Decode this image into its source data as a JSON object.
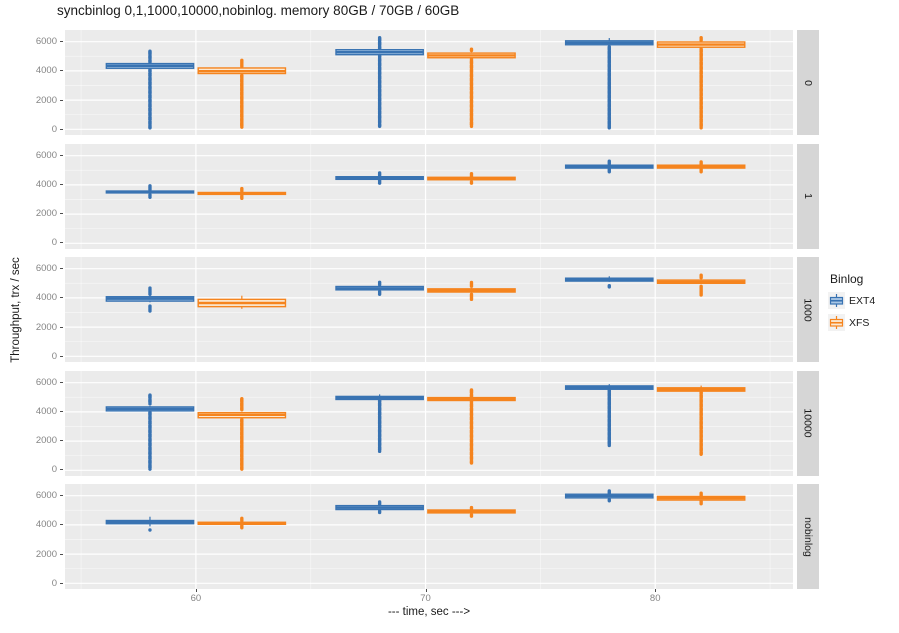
{
  "chart_data": {
    "type": "boxplot",
    "title": "syncbinlog 0,1,1000,10000,nobinlog. memory 80GB / 70GB / 60GB",
    "xlabel": "--- time, sec --->",
    "ylabel": "Throughput, trx / sec",
    "x_ticks": [
      60,
      70,
      80
    ],
    "x_domain": [
      54.3,
      86
    ],
    "y_ticks": [
      0,
      2000,
      4000,
      6000
    ],
    "y_minor_ticks": [
      1000,
      3000,
      5000
    ],
    "y_domain": [
      -390,
      6800
    ],
    "grid": "on",
    "legend": {
      "title": "Binlog",
      "position": "right",
      "entries": [
        {
          "label": "EXT4",
          "color": "#3973b2"
        },
        {
          "label": "XFS",
          "color": "#f5841e"
        }
      ]
    },
    "style": {
      "panel_bg": "#ebebeb",
      "grid_major": "#ffffff",
      "strip_bg": "#d6d6d6",
      "ext4_stroke": "#3973b2",
      "ext4_fill": "#a9c7e5",
      "xfs_stroke": "#f5841e",
      "xfs_fill": "#fbe9d3"
    },
    "facet_variable": "syncbinlog",
    "facets": [
      {
        "label": "0",
        "boxes": [
          {
            "x": 60,
            "series": "EXT4",
            "w": [
              4120,
              4550
            ],
            "box": [
              4180,
              4350,
              4500
            ],
            "below": [
              100,
              4100,
              "dense"
            ],
            "above": [
              4600,
              5400,
              "dense"
            ]
          },
          {
            "x": 60,
            "series": "XFS",
            "w": [
              3760,
              4250
            ],
            "box": [
              3820,
              3980,
              4200
            ],
            "below": [
              150,
              3720,
              "dense"
            ],
            "above": [
              4300,
              4800,
              "sparse"
            ]
          },
          {
            "x": 70,
            "series": "EXT4",
            "w": [
              5060,
              5500
            ],
            "box": [
              5110,
              5280,
              5450
            ],
            "below": [
              200,
              5050,
              "dense"
            ],
            "above": [
              5520,
              6350,
              "dense"
            ]
          },
          {
            "x": 70,
            "series": "XFS",
            "w": [
              4850,
              5280
            ],
            "box": [
              4900,
              5060,
              5220
            ],
            "below": [
              200,
              4840,
              "dense"
            ],
            "above": [
              5400,
              5550,
              "sparse"
            ]
          },
          {
            "x": 80,
            "series": "EXT4",
            "w": [
              5740,
              6250
            ],
            "box": [
              5790,
              5920,
              6060
            ],
            "below": [
              100,
              5740,
              "dense"
            ],
            "above": null
          },
          {
            "x": 80,
            "series": "XFS",
            "w": [
              5570,
              6030
            ],
            "box": [
              5620,
              5800,
              5980
            ],
            "below": [
              100,
              5570,
              "dense"
            ],
            "above": [
              6100,
              6350,
              "sparse"
            ]
          }
        ]
      },
      {
        "label": "1",
        "boxes": [
          {
            "x": 60,
            "series": "EXT4",
            "w": [
              3420,
              3610
            ],
            "box": [
              3450,
              3520,
              3580
            ],
            "below": [
              3150,
              3380,
              "sparse"
            ],
            "above": [
              3680,
              3950,
              "sparse"
            ]
          },
          {
            "x": 60,
            "series": "XFS",
            "w": [
              3320,
              3510
            ],
            "box": [
              3350,
              3420,
              3480
            ],
            "below": [
              3080,
              3280,
              "sparse"
            ],
            "above": [
              3580,
              3820,
              "sparse"
            ]
          },
          {
            "x": 70,
            "series": "EXT4",
            "w": [
              4350,
              4590
            ],
            "box": [
              4380,
              4470,
              4560
            ],
            "below": [
              4120,
              4300,
              "sparse"
            ],
            "above": [
              4650,
              4880,
              "sparse"
            ]
          },
          {
            "x": 70,
            "series": "XFS",
            "w": [
              4320,
              4550
            ],
            "box": [
              4350,
              4440,
              4520
            ],
            "below": [
              4120,
              4280,
              "sparse"
            ],
            "above": [
              4600,
              4800,
              "sparse"
            ]
          },
          {
            "x": 80,
            "series": "EXT4",
            "w": [
              5120,
              5380
            ],
            "box": [
              5150,
              5250,
              5350
            ],
            "below": [
              4900,
              5080,
              "sparse"
            ],
            "above": [
              5450,
              5650,
              "sparse"
            ]
          },
          {
            "x": 80,
            "series": "XFS",
            "w": [
              5120,
              5380
            ],
            "box": [
              5150,
              5250,
              5350
            ],
            "below": [
              4900,
              5080,
              "sparse"
            ],
            "above": [
              5400,
              5620,
              "sparse"
            ]
          }
        ]
      },
      {
        "label": "1000",
        "boxes": [
          {
            "x": 60,
            "series": "EXT4",
            "w": [
              3700,
              4150
            ],
            "box": [
              3780,
              3950,
              4080
            ],
            "below": [
              3100,
              3500,
              "sparse"
            ],
            "above": [
              4250,
              4700,
              "sparse"
            ]
          },
          {
            "x": 60,
            "series": "XFS",
            "w": [
              3250,
              4150
            ],
            "box": [
              3400,
              3650,
              3900
            ],
            "below": null,
            "above": null
          },
          {
            "x": 70,
            "series": "EXT4",
            "w": [
              4500,
              4830
            ],
            "box": [
              4550,
              4650,
              4780
            ],
            "below": [
              4250,
              4480,
              "sparse"
            ],
            "above": [
              4900,
              5100,
              "sparse"
            ]
          },
          {
            "x": 70,
            "series": "XFS",
            "w": [
              4350,
              4680
            ],
            "box": [
              4400,
              4500,
              4620
            ],
            "below": [
              3900,
              4300,
              "sparse"
            ],
            "above": [
              4800,
              5100,
              "sparse"
            ]
          },
          {
            "x": 80,
            "series": "EXT4",
            "w": [
              5100,
              5480
            ],
            "box": [
              5150,
              5250,
              5350
            ],
            "below": [
              4750,
              4900,
              "sparse"
            ],
            "above": null
          },
          {
            "x": 80,
            "series": "XFS",
            "w": [
              4950,
              5270
            ],
            "box": [
              5000,
              5100,
              5220
            ],
            "below": [
              4200,
              4800,
              "sparse"
            ],
            "above": [
              5380,
              5580,
              "sparse"
            ]
          }
        ]
      },
      {
        "label": "10000",
        "boxes": [
          {
            "x": 60,
            "series": "EXT4",
            "w": [
              4020,
              4400
            ],
            "box": [
              4070,
              4200,
              4340
            ],
            "below": [
              80,
              4000,
              "dense"
            ],
            "above": [
              4550,
              5230,
              "dense"
            ]
          },
          {
            "x": 60,
            "series": "XFS",
            "w": [
              3550,
              4000
            ],
            "box": [
              3600,
              3800,
              3950
            ],
            "below": [
              80,
              3520,
              "dense"
            ],
            "above": [
              4150,
              4900,
              "dense"
            ]
          },
          {
            "x": 70,
            "series": "EXT4",
            "w": [
              4800,
              5200
            ],
            "box": [
              4850,
              4950,
              5060
            ],
            "below": [
              1300,
              4800,
              "dense"
            ],
            "above": null
          },
          {
            "x": 70,
            "series": "XFS",
            "w": [
              4720,
              5030
            ],
            "box": [
              4780,
              4880,
              4980
            ],
            "below": [
              500,
              4700,
              "dense"
            ],
            "above": [
              5050,
              5500,
              "dense"
            ]
          },
          {
            "x": 80,
            "series": "EXT4",
            "w": [
              5500,
              5900
            ],
            "box": [
              5550,
              5660,
              5780
            ],
            "below": [
              1700,
              5500,
              "dense"
            ],
            "above": null
          },
          {
            "x": 80,
            "series": "XFS",
            "w": [
              5370,
              5800
            ],
            "box": [
              5420,
              5540,
              5650
            ],
            "below": [
              1100,
              5370,
              "dense"
            ],
            "above": null
          }
        ]
      },
      {
        "label": "nobinlog",
        "boxes": [
          {
            "x": 60,
            "series": "EXT4",
            "w": [
              3900,
              4560
            ],
            "box": [
              4080,
              4190,
              4300
            ],
            "below": [
              3650,
              3700,
              "sparse"
            ],
            "above": null
          },
          {
            "x": 60,
            "series": "XFS",
            "w": [
              4000,
              4220
            ],
            "box": [
              4040,
              4110,
              4180
            ],
            "below": [
              3800,
              3980,
              "sparse"
            ],
            "above": [
              4280,
              4480,
              "sparse"
            ]
          },
          {
            "x": 70,
            "series": "EXT4",
            "w": [
              5020,
              5360
            ],
            "box": [
              5050,
              5180,
              5320
            ],
            "below": [
              4850,
              5000,
              "sparse"
            ],
            "above": [
              5400,
              5600,
              "sparse"
            ]
          },
          {
            "x": 70,
            "series": "XFS",
            "w": [
              4790,
              5060
            ],
            "box": [
              4820,
              4920,
              5020
            ],
            "below": [
              4600,
              4760,
              "sparse"
            ],
            "above": [
              5100,
              5250,
              "sparse"
            ]
          },
          {
            "x": 80,
            "series": "EXT4",
            "w": [
              5820,
              6130
            ],
            "box": [
              5850,
              5980,
              6100
            ],
            "below": [
              5650,
              5800,
              "sparse"
            ],
            "above": [
              6150,
              6350,
              "sparse"
            ]
          },
          {
            "x": 80,
            "series": "XFS",
            "w": [
              5670,
              5980
            ],
            "box": [
              5700,
              5830,
              5950
            ],
            "below": [
              5450,
              5650,
              "sparse"
            ],
            "above": [
              6000,
              6200,
              "sparse"
            ]
          }
        ]
      }
    ]
  }
}
